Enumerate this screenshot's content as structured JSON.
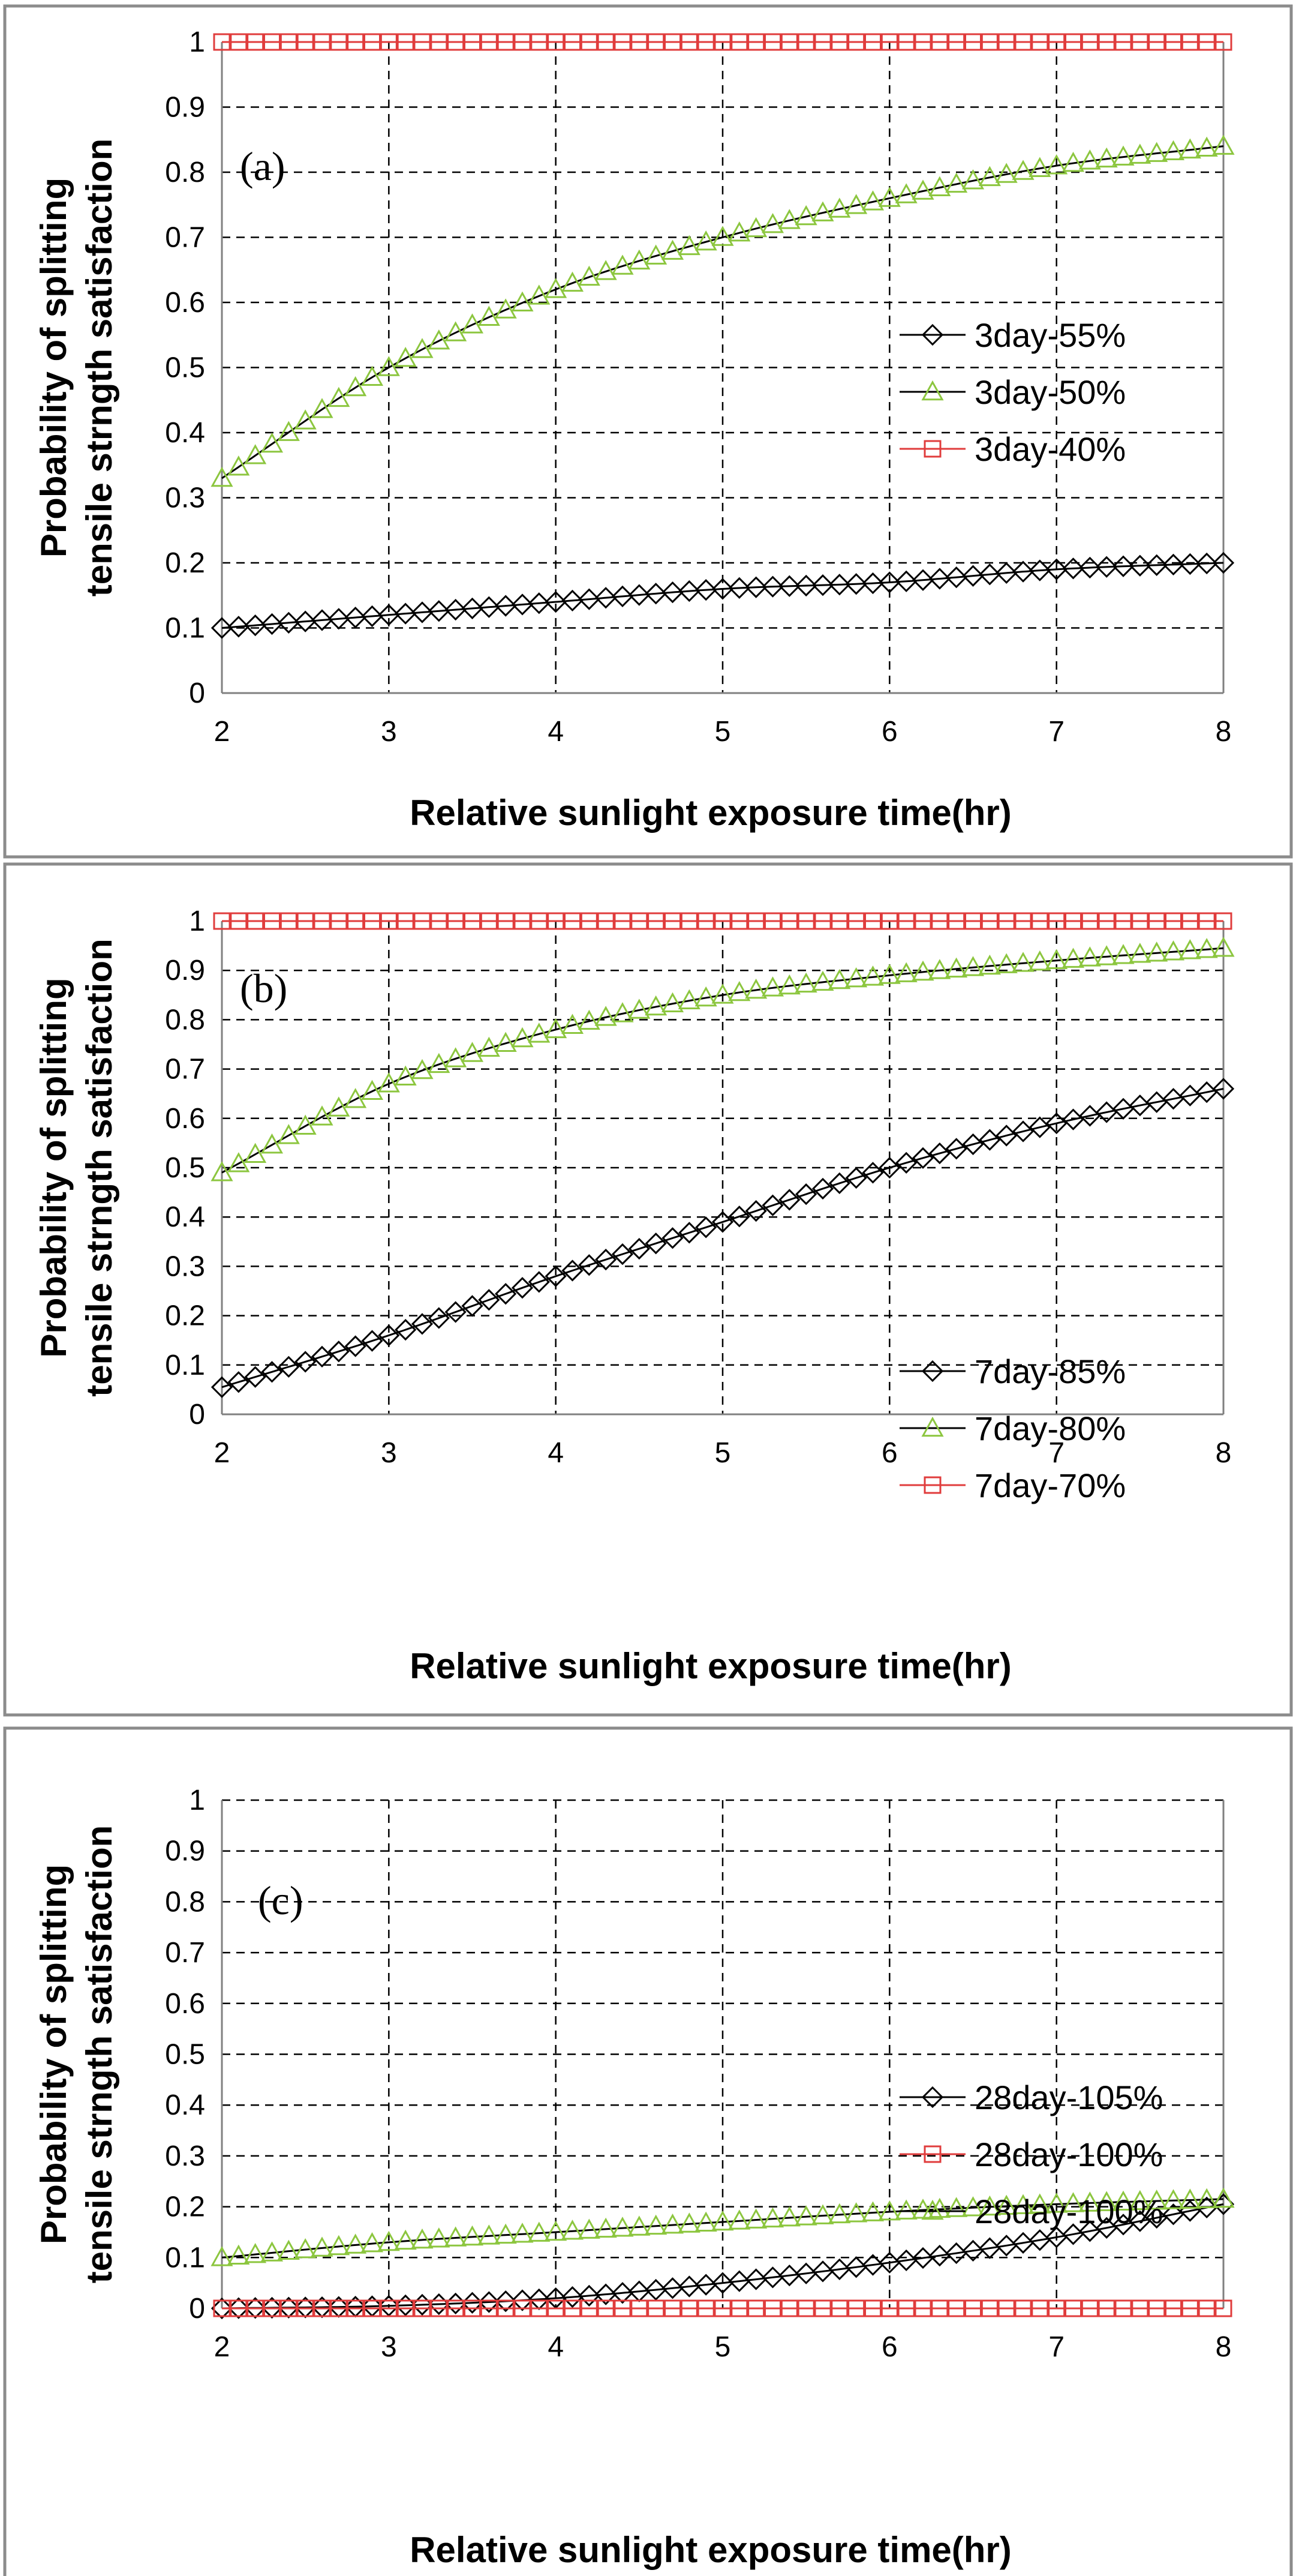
{
  "chart_data": [
    {
      "type": "line",
      "panel_label": "(a)",
      "xlabel": "Relative sunlight exposure time(hr)",
      "ylabel_lines": [
        "Probability of splitting",
        "tensile strngth satisfaction"
      ],
      "xlim": [
        2,
        8
      ],
      "ylim": [
        0,
        1
      ],
      "x_ticks": [
        "2",
        "3",
        "4",
        "5",
        "6",
        "7",
        "8"
      ],
      "y_ticks": [
        "0",
        "0.1",
        "0.2",
        "0.3",
        "0.4",
        "0.5",
        "0.6",
        "0.7",
        "0.8",
        "0.9",
        "1"
      ],
      "grid": true,
      "legend_position": "center-right",
      "series": [
        {
          "name": "3day-55%",
          "marker": "diamond",
          "color": "#000000",
          "line_color": "#000000",
          "x": [
            2,
            3,
            4,
            5,
            6,
            7,
            8
          ],
          "y": [
            0.1,
            0.12,
            0.14,
            0.16,
            0.17,
            0.19,
            0.2
          ]
        },
        {
          "name": "3day-50%",
          "marker": "triangle",
          "color": "#8cc63f",
          "line_color": "#000000",
          "x": [
            2,
            3,
            4,
            5,
            6,
            7,
            8
          ],
          "y": [
            0.33,
            0.5,
            0.62,
            0.7,
            0.76,
            0.81,
            0.84
          ]
        },
        {
          "name": "3day-40%",
          "marker": "square",
          "color": "#e03c3c",
          "line_color": "#e03c3c",
          "x": [
            2,
            3,
            4,
            5,
            6,
            7,
            8
          ],
          "y": [
            1,
            1,
            1,
            1,
            1,
            1,
            1
          ]
        }
      ]
    },
    {
      "type": "line",
      "panel_label": "(b)",
      "xlabel": "Relative sunlight exposure time(hr)",
      "ylabel_lines": [
        "Probability of splitting",
        "tensile strngth satisfaction"
      ],
      "xlim": [
        2,
        8
      ],
      "ylim": [
        0,
        1
      ],
      "x_ticks": [
        "2",
        "3",
        "4",
        "5",
        "6",
        "7",
        "8"
      ],
      "y_ticks": [
        "0",
        "0.1",
        "0.2",
        "0.3",
        "0.4",
        "0.5",
        "0.6",
        "0.7",
        "0.8",
        "0.9",
        "1"
      ],
      "grid": true,
      "legend_position": "bottom-right",
      "series": [
        {
          "name": "7day-85%",
          "marker": "diamond",
          "color": "#000000",
          "line_color": "#000000",
          "x": [
            2,
            3,
            4,
            5,
            6,
            7,
            8
          ],
          "y": [
            0.055,
            0.16,
            0.28,
            0.39,
            0.5,
            0.59,
            0.66
          ]
        },
        {
          "name": "7day-80%",
          "marker": "triangle",
          "color": "#8cc63f",
          "line_color": "#000000",
          "x": [
            2,
            3,
            4,
            5,
            6,
            7,
            8
          ],
          "y": [
            0.49,
            0.67,
            0.78,
            0.85,
            0.89,
            0.92,
            0.945
          ]
        },
        {
          "name": "7day-70%",
          "marker": "square",
          "color": "#e03c3c",
          "line_color": "#e03c3c",
          "x": [
            2,
            3,
            4,
            5,
            6,
            7,
            8
          ],
          "y": [
            1,
            1,
            1,
            1,
            1,
            1,
            1
          ]
        }
      ]
    },
    {
      "type": "line",
      "panel_label": "(c)",
      "xlabel": "Relative sunlight exposure time(hr)",
      "ylabel_lines": [
        "Probability of splitting",
        "tensile strngth satisfaction"
      ],
      "xlim": [
        2,
        8
      ],
      "ylim": [
        0,
        1
      ],
      "x_ticks": [
        "2",
        "3",
        "4",
        "5",
        "6",
        "7",
        "8"
      ],
      "y_ticks": [
        "0",
        "0.1",
        "0.2",
        "0.3",
        "0.4",
        "0.5",
        "0.6",
        "0.7",
        "0.8",
        "0.9",
        "1"
      ],
      "grid": true,
      "legend_position": "center-right",
      "series": [
        {
          "name": "28day-105%",
          "marker": "diamond",
          "color": "#000000",
          "line_color": "#000000",
          "x": [
            2,
            3,
            4,
            5,
            6,
            7,
            8
          ],
          "y": [
            0.0,
            0.005,
            0.02,
            0.05,
            0.09,
            0.14,
            0.205
          ]
        },
        {
          "name": "28day-100%",
          "marker": "square",
          "color": "#e03c3c",
          "line_color": "#e03c3c",
          "x": [
            2,
            3,
            4,
            5,
            6,
            7,
            8
          ],
          "y": [
            0,
            0,
            0,
            0,
            0,
            0,
            0
          ]
        },
        {
          "name": "28day-100%",
          "marker": "triangle",
          "color": "#8cc63f",
          "line_color": "#000000",
          "x": [
            2,
            3,
            4,
            5,
            6,
            7,
            8
          ],
          "y": [
            0.1,
            0.13,
            0.15,
            0.17,
            0.19,
            0.205,
            0.215
          ]
        }
      ]
    }
  ]
}
